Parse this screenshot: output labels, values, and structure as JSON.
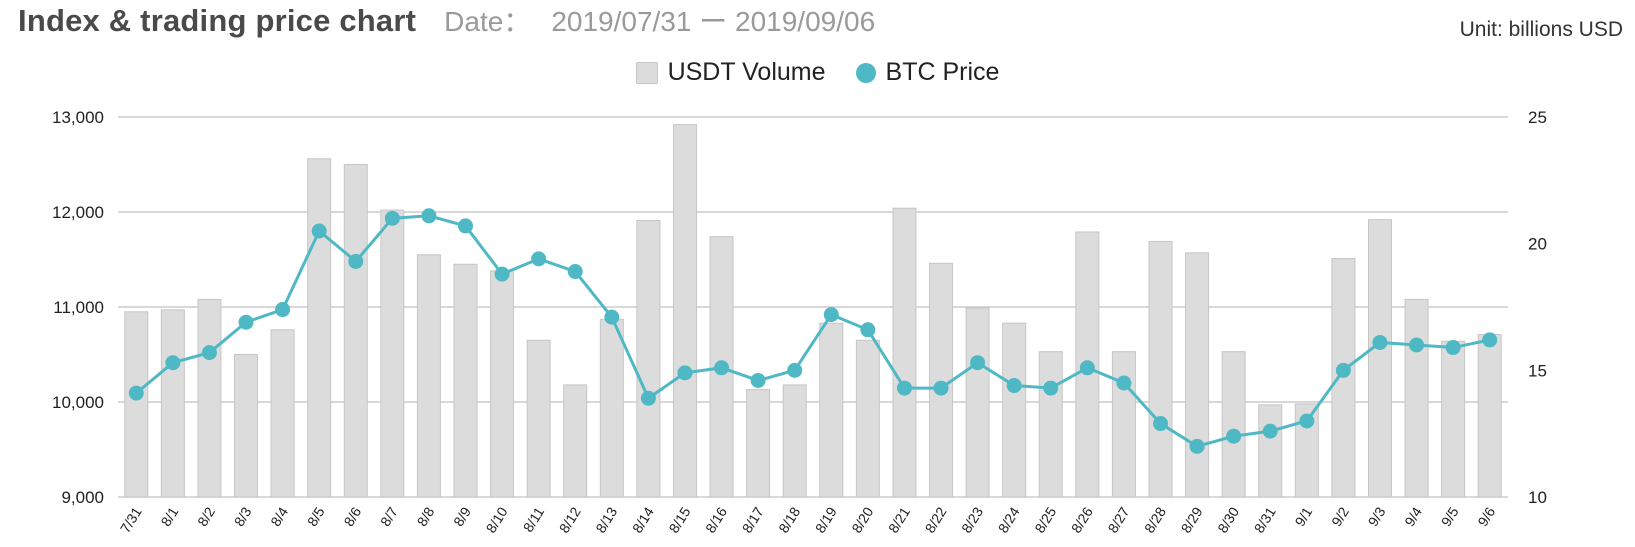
{
  "header": {
    "title": "Index & trading price chart",
    "date_label": "Date：",
    "date_range": "2019/07/31 ー 2019/09/06",
    "unit": "Unit: billions USD"
  },
  "colors": {
    "bar": "#dcdcdc",
    "bar_stroke": "#c6c6c6",
    "line": "#4fb8c5",
    "grid": "#cccccc"
  },
  "chart_data": {
    "type": "bar",
    "title": "Index & trading price chart",
    "categories": [
      "7/31",
      "8/1",
      "8/2",
      "8/3",
      "8/4",
      "8/5",
      "8/6",
      "8/7",
      "8/8",
      "8/9",
      "8/10",
      "8/11",
      "8/12",
      "8/13",
      "8/14",
      "8/15",
      "8/16",
      "8/17",
      "8/18",
      "8/19",
      "8/20",
      "8/21",
      "8/22",
      "8/23",
      "8/24",
      "8/25",
      "8/26",
      "8/27",
      "8/28",
      "8/29",
      "8/30",
      "8/31",
      "9/1",
      "9/2",
      "9/3",
      "9/4",
      "9/5",
      "9/6"
    ],
    "series": [
      {
        "name": "USDT Volume",
        "type": "bar",
        "axis": "left",
        "values": [
          10.95,
          10.97,
          11.08,
          10.5,
          10.76,
          12.56,
          12.5,
          12.02,
          11.55,
          11.45,
          11.38,
          10.65,
          10.18,
          10.87,
          11.91,
          12.92,
          11.74,
          10.13,
          10.18,
          10.83,
          10.65,
          12.04,
          11.46,
          10.99,
          10.83,
          10.53,
          11.79,
          10.53,
          11.69,
          11.57,
          10.53,
          9.97,
          9.98,
          11.51,
          11.92,
          11.08,
          10.64,
          10.71
        ]
      },
      {
        "name": "BTC Price",
        "type": "line",
        "axis": "right",
        "values": [
          14.1,
          15.3,
          15.7,
          16.9,
          17.4,
          20.5,
          19.3,
          21.0,
          21.1,
          20.7,
          18.8,
          19.4,
          18.9,
          17.1,
          13.9,
          14.9,
          15.1,
          14.6,
          15.0,
          17.2,
          16.6,
          14.3,
          14.3,
          15.3,
          14.4,
          14.3,
          15.1,
          14.5,
          12.9,
          12.0,
          12.4,
          12.6,
          13.0,
          15.0,
          16.1,
          16.0,
          15.9,
          16.2
        ]
      }
    ],
    "y_left": {
      "ticks": [
        "9,000",
        "10,000",
        "11,000",
        "12,000",
        "13,000"
      ],
      "range": [
        9,
        13
      ]
    },
    "y_right": {
      "ticks": [
        "10",
        "15",
        "20",
        "25"
      ],
      "range": [
        10,
        25
      ]
    },
    "legend": {
      "placement": "top-center",
      "entries": [
        "USDT Volume",
        "BTC Price"
      ]
    },
    "grid": true
  }
}
